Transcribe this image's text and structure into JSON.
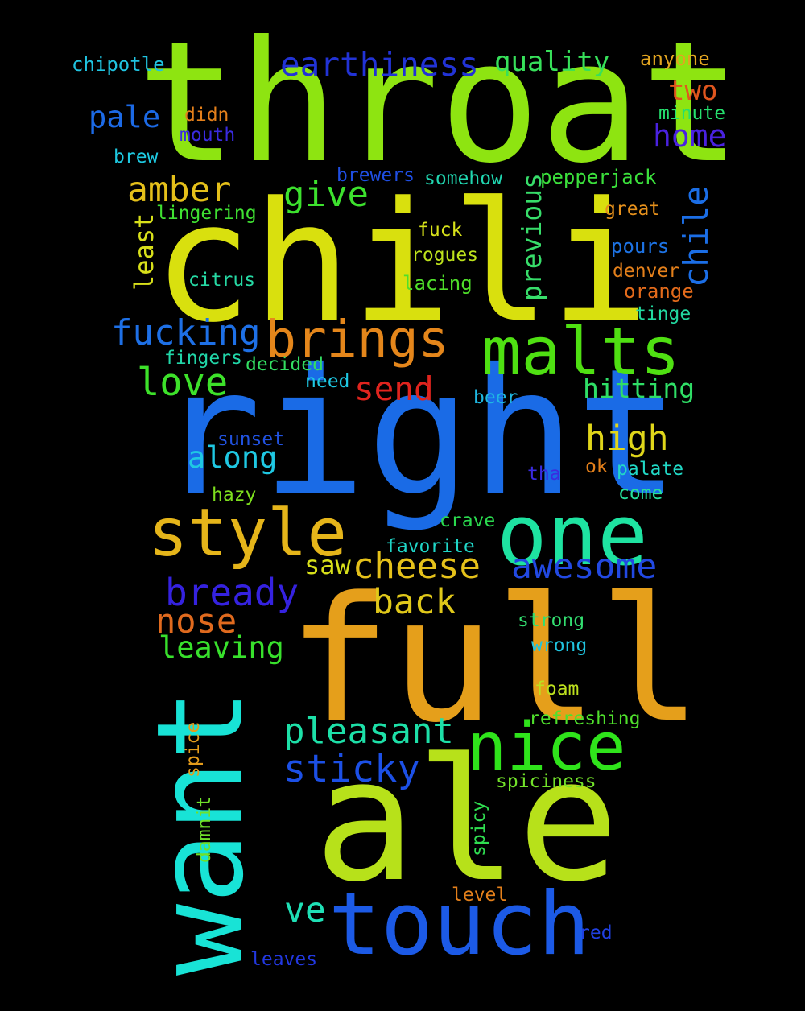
{
  "words": [
    {
      "text": "throat",
      "color": "#8ee411"
    },
    {
      "text": "chili",
      "color": "#d9e00e"
    },
    {
      "text": "right",
      "color": "#1a6be6"
    },
    {
      "text": "full",
      "color": "#e59f1b"
    },
    {
      "text": "ale",
      "color": "#b7e11a"
    },
    {
      "text": "want",
      "color": "#18e3d6"
    },
    {
      "text": "touch",
      "color": "#1c5ae6"
    },
    {
      "text": "one",
      "color": "#1ee3a1"
    },
    {
      "text": "malts",
      "color": "#4fe012"
    },
    {
      "text": "style",
      "color": "#e5b51a"
    },
    {
      "text": "nice",
      "color": "#2fe41b"
    },
    {
      "text": "brings",
      "color": "#e4861b"
    },
    {
      "text": "earthiness",
      "color": "#2233d6"
    },
    {
      "text": "quality",
      "color": "#37e05a"
    },
    {
      "text": "anyone",
      "color": "#e3a520"
    },
    {
      "text": "chipotle",
      "color": "#20c3e0"
    },
    {
      "text": "two",
      "color": "#e0561e"
    },
    {
      "text": "pale",
      "color": "#1c6ae6"
    },
    {
      "text": "didn",
      "color": "#e4801b"
    },
    {
      "text": "minute",
      "color": "#25e06e"
    },
    {
      "text": "home",
      "color": "#4a22e0"
    },
    {
      "text": "mouth",
      "color": "#3a2be0"
    },
    {
      "text": "brew",
      "color": "#1ec8e0"
    },
    {
      "text": "amber",
      "color": "#e5c01a"
    },
    {
      "text": "brewers",
      "color": "#1f4ee2"
    },
    {
      "text": "somehow",
      "color": "#20d6b0"
    },
    {
      "text": "pepperjack",
      "color": "#3be03c"
    },
    {
      "text": "chile",
      "color": "#1b6ee6"
    },
    {
      "text": "give",
      "color": "#3de12e"
    },
    {
      "text": "lingering",
      "color": "#3fe032"
    },
    {
      "text": "previous",
      "color": "#37dd6a"
    },
    {
      "text": "great",
      "color": "#e5901c"
    },
    {
      "text": "least",
      "color": "#d8e01a"
    },
    {
      "text": "fuck",
      "color": "#d7e21a"
    },
    {
      "text": "pours",
      "color": "#1d73e5"
    },
    {
      "text": "rogues",
      "color": "#bde21c"
    },
    {
      "text": "denver",
      "color": "#e4801b"
    },
    {
      "text": "citrus",
      "color": "#26d9a4"
    },
    {
      "text": "lacing",
      "color": "#4fdf2a"
    },
    {
      "text": "orange",
      "color": "#e46b1b"
    },
    {
      "text": "tinge",
      "color": "#22d8a0"
    },
    {
      "text": "fucking",
      "color": "#1e70e6"
    },
    {
      "text": "fingers",
      "color": "#21d6a8"
    },
    {
      "text": "decided",
      "color": "#33de62"
    },
    {
      "text": "love",
      "color": "#3de12a"
    },
    {
      "text": "need",
      "color": "#1ec8e3"
    },
    {
      "text": "send",
      "color": "#e0241e"
    },
    {
      "text": "hitting",
      "color": "#2fde66"
    },
    {
      "text": "beer",
      "color": "#1fb8e2"
    },
    {
      "text": "high",
      "color": "#e0d61a"
    },
    {
      "text": "along",
      "color": "#1fc8e3"
    },
    {
      "text": "sunset",
      "color": "#2152e0"
    },
    {
      "text": "ok",
      "color": "#e4801b"
    },
    {
      "text": "palate",
      "color": "#21d9c6"
    },
    {
      "text": "tha",
      "color": "#3a2be0"
    },
    {
      "text": "hazy",
      "color": "#7ee01e"
    },
    {
      "text": "come",
      "color": "#26e09c"
    },
    {
      "text": "crave",
      "color": "#2ad94e"
    },
    {
      "text": "favorite",
      "color": "#20d6c8"
    },
    {
      "text": "saw",
      "color": "#d8e01a"
    },
    {
      "text": "cheese",
      "color": "#e5c11a"
    },
    {
      "text": "awesome",
      "color": "#2249e2"
    },
    {
      "text": "bready",
      "color": "#3522e0"
    },
    {
      "text": "back",
      "color": "#e0c81a"
    },
    {
      "text": "nose",
      "color": "#e06a1e"
    },
    {
      "text": "strong",
      "color": "#33de70"
    },
    {
      "text": "leaving",
      "color": "#38e02c"
    },
    {
      "text": "wrong",
      "color": "#20c4e0"
    },
    {
      "text": "foam",
      "color": "#bde01e"
    },
    {
      "text": "refreshing",
      "color": "#4fe02c"
    },
    {
      "text": "pleasant",
      "color": "#1de0a8"
    },
    {
      "text": "sticky",
      "color": "#1c50e6"
    },
    {
      "text": "spiciness",
      "color": "#72e12a"
    },
    {
      "text": "spice",
      "color": "#e49c1b"
    },
    {
      "text": "damnit",
      "color": "#6fe02a"
    },
    {
      "text": "spicy",
      "color": "#2fde50"
    },
    {
      "text": "ve",
      "color": "#1fe0b6"
    },
    {
      "text": "level",
      "color": "#e4801b"
    },
    {
      "text": "red",
      "color": "#2040e0"
    },
    {
      "text": "leaves",
      "color": "#2238e0"
    }
  ]
}
